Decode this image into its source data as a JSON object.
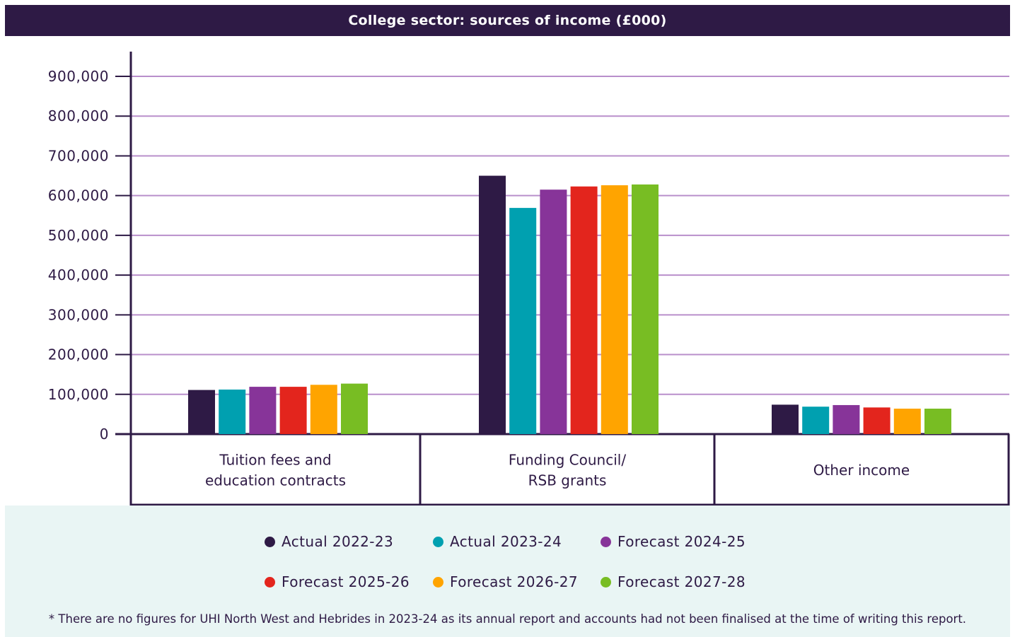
{
  "chart_data": {
    "type": "bar",
    "title": "College sector: sources of income (£000)",
    "categories": [
      "Tuition fees and education contracts",
      "Funding Council/ RSB grants",
      "Other income"
    ],
    "category_lines": [
      [
        "Tuition fees and",
        "education contracts"
      ],
      [
        "Funding Council/",
        "RSB grants"
      ],
      [
        "Other income"
      ]
    ],
    "series": [
      {
        "name": "Actual 2022-23",
        "color": "#2e1a45",
        "values": [
          111000,
          650000,
          74000
        ]
      },
      {
        "name": "Actual 2023-24",
        "color": "#00a0b0",
        "values": [
          112000,
          569000,
          69000
        ]
      },
      {
        "name": "Forecast 2024-25",
        "color": "#873499",
        "values": [
          119000,
          615000,
          73000
        ]
      },
      {
        "name": "Forecast 2025-26",
        "color": "#e3251d",
        "values": [
          119000,
          623000,
          67000
        ]
      },
      {
        "name": "Forecast 2026-27",
        "color": "#ffa400",
        "values": [
          124000,
          626000,
          64000
        ]
      },
      {
        "name": "Forecast 2027-28",
        "color": "#78bd23",
        "values": [
          127000,
          628000,
          64000
        ]
      }
    ],
    "yticks": [
      "0",
      "100,000",
      "200,000",
      "300,000",
      "400,000",
      "500,000",
      "600,000",
      "700,000",
      "800,000",
      "900,000"
    ],
    "ylim": [
      0,
      900000
    ],
    "grid": true,
    "legend_position": "bottom",
    "xlabel": "",
    "ylabel": ""
  },
  "footnote": "* There are no figures for UHI North West and Hebrides in 2023-24 as its annual report and accounts had not been finalised at the time of writing this report."
}
